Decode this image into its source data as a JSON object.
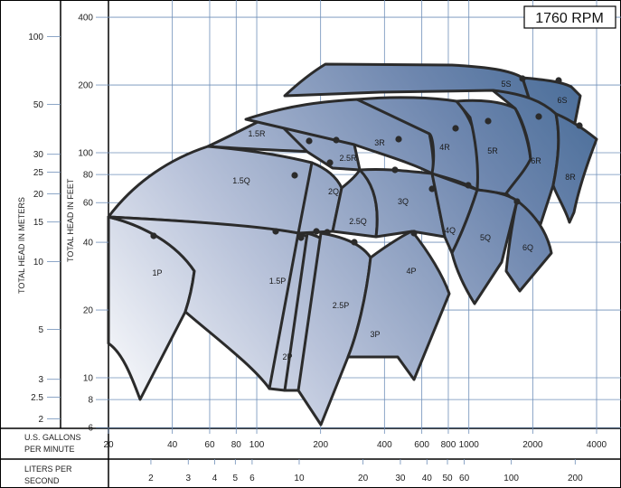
{
  "chart_data": {
    "type": "area",
    "speed_label": "1760 RPM",
    "left_axis_title": "TOTAL HEAD IN METERS",
    "inner_axis_title": "TOTAL HEAD IN FEET",
    "bottom_row1_title": "U.S. GALLONS PER MINUTE",
    "bottom_row2_title": "LITERS PER SECOND",
    "gpm_ticks": [
      "20",
      "40",
      "60",
      "80",
      "100",
      "200",
      "400",
      "600",
      "800",
      "1000",
      "2000",
      "4000"
    ],
    "lps_ticks": [
      "2",
      "3",
      "4",
      "5",
      "6",
      "10",
      "20",
      "30",
      "40",
      "50",
      "60",
      "100",
      "200"
    ],
    "feet_ticks": [
      "400",
      "200",
      "100",
      "80",
      "60",
      "40",
      "20",
      "10",
      "8",
      "6"
    ],
    "meter_ticks": [
      "100",
      "50",
      "30",
      "25",
      "20",
      "15",
      "10",
      "5",
      "3",
      "2.5",
      "2"
    ],
    "scales": {
      "x": "log",
      "y": "log"
    },
    "x_range_gpm": [
      20,
      4000
    ],
    "y_range_feet": [
      5.8,
      400
    ],
    "grid": true,
    "series_labels": [
      "1P",
      "1.5P",
      "2P",
      "2.5P",
      "3P",
      "4P",
      "1.5Q",
      "2Q",
      "2.5Q",
      "3Q",
      "4Q",
      "5Q",
      "6Q",
      "1.5R",
      "2.5R",
      "3R",
      "4R",
      "5R",
      "6R",
      "8R",
      "5S",
      "6S"
    ]
  }
}
